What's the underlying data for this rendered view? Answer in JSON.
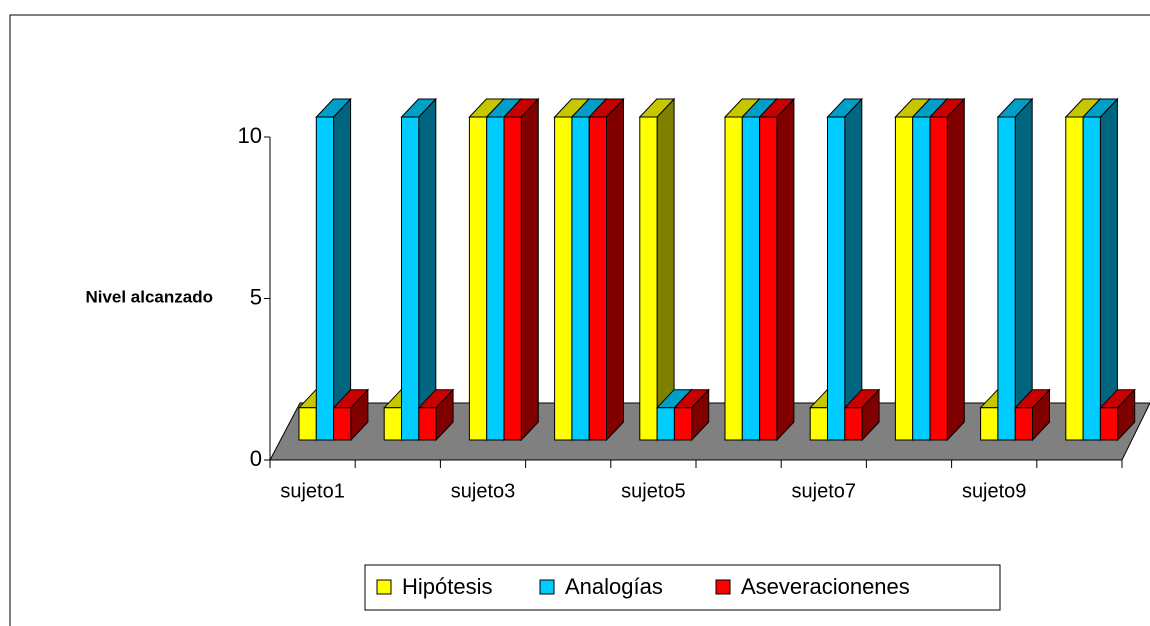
{
  "chart_data": {
    "type": "bar3d",
    "y_label": "Nivel alcanzado",
    "categories": [
      "sujeto1",
      null,
      "sujeto3",
      null,
      "sujeto5",
      null,
      "sujeto7",
      null,
      "sujeto9",
      null
    ],
    "series": [
      {
        "name": "Hipótesis",
        "color": "#ffff00",
        "values": [
          1,
          1,
          10,
          10,
          10,
          10,
          1,
          10,
          1,
          10
        ]
      },
      {
        "name": "Analogías",
        "color": "#00ccff",
        "values": [
          10,
          10,
          10,
          10,
          1,
          10,
          10,
          10,
          10,
          10
        ]
      },
      {
        "name": "Aseveracionenes",
        "color": "#ff0000",
        "values": [
          1,
          1,
          10,
          10,
          1,
          10,
          1,
          10,
          1,
          1
        ]
      }
    ],
    "ylim": [
      0,
      10
    ],
    "yticks": [
      0,
      5,
      10
    ]
  }
}
